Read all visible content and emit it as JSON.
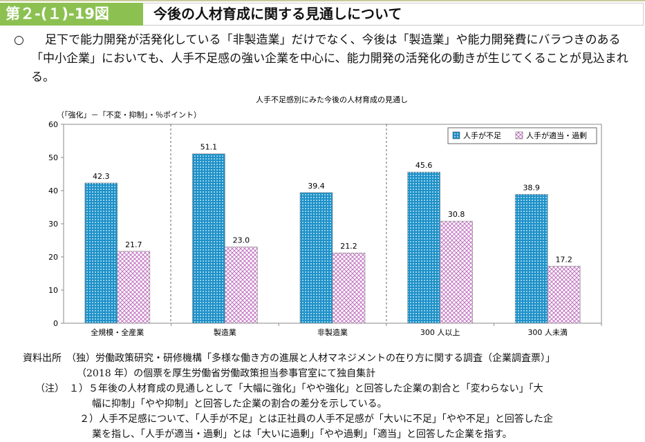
{
  "header": {
    "figure_no": "第２-(１)-19図",
    "title": "今後の人材育成に関する見通しについて"
  },
  "lead": {
    "bullet": "○",
    "text": "足下で能力開発が活発化している「非製造業」だけでなく、今後は「製造業」や能力開発費にバラつきのある「中小企業」においても、人手不足感の強い企業を中心に、能力開発の活発化の動きが生じてくることが見込まれる。"
  },
  "chart_data": {
    "type": "bar",
    "title": "人手不足感別にみた今後の人材育成の見通し",
    "ylabel": "（「強化」－「不変・抑制」・％ポイント）",
    "xlabel": "",
    "ylim": [
      0,
      60
    ],
    "yticks": [
      0,
      10,
      20,
      30,
      40,
      50,
      60
    ],
    "categories": [
      "全規模・全産業",
      "製造業",
      "非製造業",
      "300 人以上",
      "300 人未満"
    ],
    "series": [
      {
        "name": "人手が不足",
        "values": [
          42.3,
          51.1,
          39.4,
          45.6,
          38.9
        ],
        "color": "#1e90c8"
      },
      {
        "name": "人手が適当・過剰",
        "values": [
          21.7,
          23.0,
          21.2,
          30.8,
          17.2
        ],
        "color": "#c070c0"
      }
    ],
    "data_labels": [
      [
        "42.3",
        "51.1",
        "39.4",
        "45.6",
        "38.9"
      ],
      [
        "21.7",
        "23.0",
        "21.2",
        "30.8",
        "17.2"
      ]
    ],
    "legend_position": "top-right",
    "grid": false
  },
  "notes": {
    "source_label": "資料出所",
    "source_line1": "（独）労働政策研究・研修機構「多様な働き方の進展と人材マネジメントの在り方に関する調査（企業調査票）」",
    "source_line2": "（2018 年）の個票を厚生労働省労働政策担当参事官室にて独自集計",
    "note_label": "（注）",
    "note1a": "１）５年後の人材育成の見通しとして「大幅に強化」「やや強化」と回答した企業の割合と「変わらない」「大",
    "note1b": "幅に抑制」「やや抑制」と回答した企業の割合の差分を示している。",
    "note2a": "２）人手不足感について、「人手が不足」とは正社員の人手不足感が「大いに不足」「やや不足」と回答した企",
    "note2b": "業を指し、「人手が適当・過剰」とは「大いに過剰」「やや過剰」「適当」と回答した企業を指す。"
  }
}
